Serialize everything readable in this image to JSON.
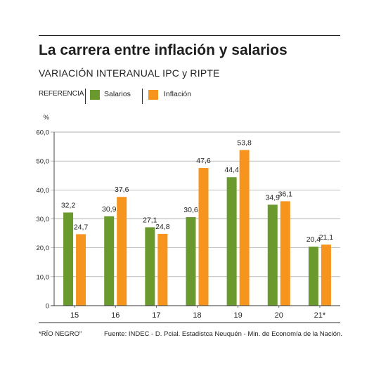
{
  "title": "La carrera entre inflación y salarios",
  "subtitle": "VARIACIÓN INTERANUAL IPC y RIPTE",
  "legend": {
    "reference_label": "REFERENCIA",
    "items": [
      {
        "label": "Salarios",
        "color": "#6a9a2e"
      },
      {
        "label": "Inflación",
        "color": "#f7941d"
      }
    ]
  },
  "chart_data": {
    "type": "bar",
    "categories": [
      "15",
      "16",
      "17",
      "18",
      "19",
      "20",
      "21*"
    ],
    "series": [
      {
        "name": "Salarios",
        "color": "#6a9a2e",
        "values": [
          32.2,
          30.9,
          27.1,
          30.6,
          44.4,
          34.9,
          20.4
        ],
        "labels": [
          "32,2",
          "30,9",
          "27,1",
          "30,6",
          "44,4",
          "34,9",
          "20,4"
        ]
      },
      {
        "name": "Inflación",
        "color": "#f7941d",
        "values": [
          24.7,
          37.6,
          24.8,
          47.6,
          53.8,
          36.1,
          21.1
        ],
        "labels": [
          "24,7",
          "37,6",
          "24,8",
          "47,6",
          "53,8",
          "36,1",
          "21,1"
        ]
      }
    ],
    "ylabel": "%",
    "ylim": [
      0,
      60
    ],
    "yticks": [
      0,
      10,
      20,
      30,
      40,
      50,
      60
    ],
    "ytick_labels": [
      "0",
      "10,0",
      "20,0",
      "30,0",
      "40,0",
      "50,0",
      "60,0"
    ],
    "grid": true
  },
  "footnote": "*RÍO NEGRO\"",
  "source": "Fuente: INDEC - D. Pcial. Estadistca Neuquén - Min. de Economía de la Nación."
}
